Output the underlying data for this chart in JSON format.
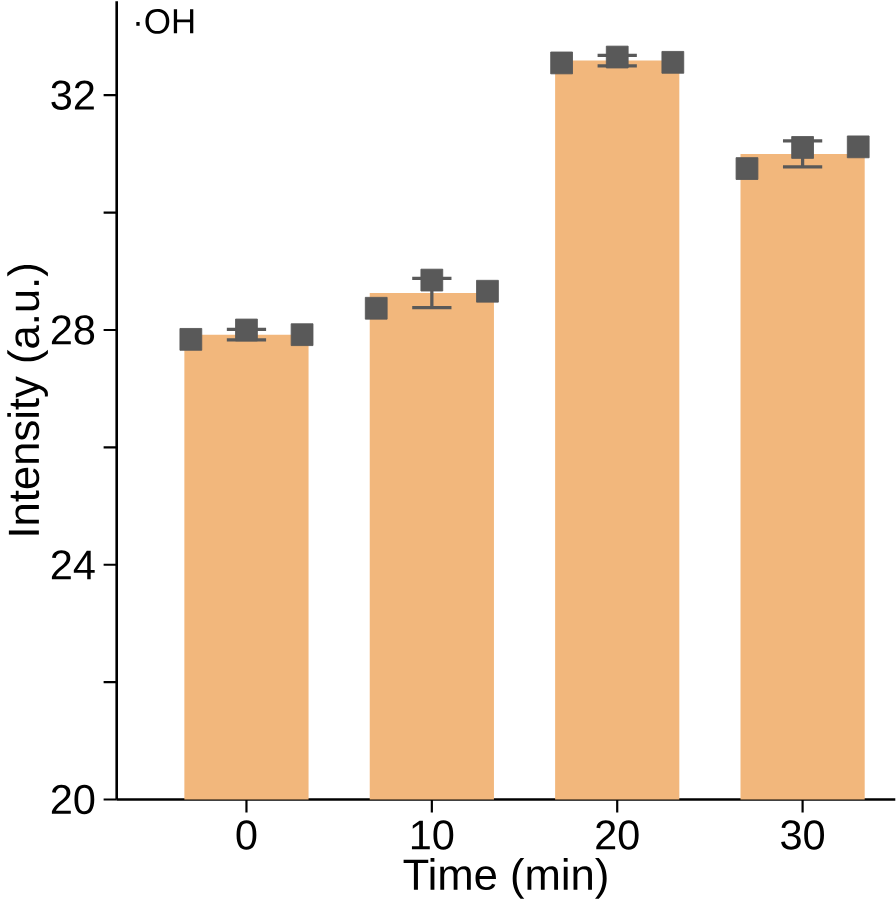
{
  "chart_data": {
    "type": "bar",
    "categories": [
      "0",
      "10",
      "20",
      "30"
    ],
    "xlabel": "Time (min)",
    "ylabel": "Intensity (a.u.)",
    "annotations": [
      "·OH"
    ],
    "series": [
      {
        "color": "#f2b77c",
        "values": [
          27.92,
          28.63,
          32.59,
          31.0
        ],
        "errors": [
          0.09,
          0.25,
          0.09,
          0.22
        ]
      },
      {
        "type": "scatter",
        "color": "#595959",
        "marker": "square",
        "x": [
          "0",
          "0",
          "0",
          "10",
          "10",
          "10",
          "20",
          "20",
          "20",
          "30",
          "30",
          "30"
        ],
        "values": [
          27.84,
          28.0,
          27.92,
          28.37,
          28.85,
          28.66,
          32.55,
          32.65,
          32.56,
          30.75,
          31.11,
          31.12
        ]
      }
    ],
    "ylim": [
      20,
      33.6
    ],
    "yticks": [
      20,
      {
        "value": 22,
        "label": null
      },
      24,
      {
        "value": 26,
        "label": null
      },
      28,
      {
        "value": 30,
        "label": null
      },
      32
    ],
    "grid": false
  }
}
